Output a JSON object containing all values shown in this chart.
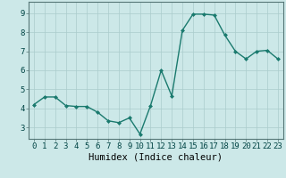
{
  "x": [
    0,
    1,
    2,
    3,
    4,
    5,
    6,
    7,
    8,
    9,
    10,
    11,
    12,
    13,
    14,
    15,
    16,
    17,
    18,
    19,
    20,
    21,
    22,
    23
  ],
  "y": [
    4.2,
    4.6,
    4.6,
    4.15,
    4.1,
    4.1,
    3.8,
    3.35,
    3.25,
    3.5,
    2.65,
    4.15,
    6.0,
    4.65,
    8.1,
    8.95,
    8.95,
    8.9,
    7.85,
    7.0,
    6.6,
    7.0,
    7.05,
    6.6
  ],
  "line_color": "#1a7a6e",
  "marker": "D",
  "marker_size": 2.0,
  "bg_color": "#cce8e8",
  "grid_color": "#aacccc",
  "axis_bg": "#cce8e8",
  "xlabel": "Humidex (Indice chaleur)",
  "xlim": [
    -0.5,
    23.5
  ],
  "ylim": [
    2.4,
    9.6
  ],
  "xticks": [
    0,
    1,
    2,
    3,
    4,
    5,
    6,
    7,
    8,
    9,
    10,
    11,
    12,
    13,
    14,
    15,
    16,
    17,
    18,
    19,
    20,
    21,
    22,
    23
  ],
  "yticks": [
    3,
    4,
    5,
    6,
    7,
    8,
    9
  ],
  "tick_label_size": 6.5,
  "xlabel_size": 7.5,
  "linewidth": 1.0
}
